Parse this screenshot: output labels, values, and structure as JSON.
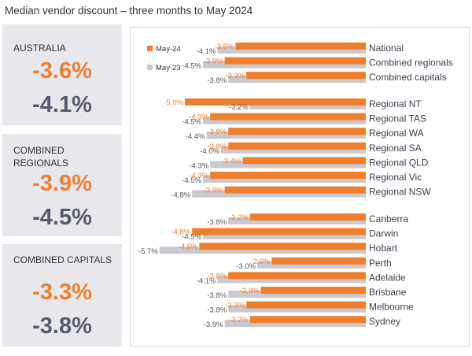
{
  "title": "Median vendor discount – three months to May 2024",
  "summary": [
    {
      "label": "AUSTRALIA",
      "current": "-3.6%",
      "previous": "-4.1%"
    },
    {
      "label": "COMBINED REGIONALS",
      "current": "-3.9%",
      "previous": "-4.5%"
    },
    {
      "label": "COMBINED CAPITALS",
      "current": "-3.3%",
      "previous": "-3.8%"
    }
  ],
  "colors": {
    "may24": "#f07f2d",
    "may23": "#c9c9cf",
    "panel": "#e7e7ec"
  },
  "chart_data": {
    "type": "bar",
    "orientation": "horizontal",
    "legend_position": "top-left",
    "groups": [
      [
        "National",
        "Combined regionals",
        "Combined capitals"
      ],
      [
        "Regional NT",
        "Regional TAS",
        "Regional WA",
        "Regional SA",
        "Regional QLD",
        "Regional Vic",
        "Regional NSW"
      ],
      [
        "Canberra",
        "Darwin",
        "Hobart",
        "Perth",
        "Adelaide",
        "Brisbane",
        "Melbourne",
        "Sydney"
      ]
    ],
    "categories": [
      "National",
      "Combined regionals",
      "Combined capitals",
      "Regional NT",
      "Regional TAS",
      "Regional WA",
      "Regional SA",
      "Regional QLD",
      "Regional Vic",
      "Regional NSW",
      "Canberra",
      "Darwin",
      "Hobart",
      "Perth",
      "Adelaide",
      "Brisbane",
      "Melbourne",
      "Sydney"
    ],
    "series": [
      {
        "name": "May-24",
        "values": [
          -3.6,
          -3.9,
          -3.3,
          -5.0,
          -4.3,
          -3.8,
          -3.8,
          -3.4,
          -4.3,
          -3.9,
          -3.2,
          -4.8,
          -4.6,
          -2.6,
          -3.8,
          -2.9,
          -3.3,
          -3.2
        ]
      },
      {
        "name": "May-23",
        "values": [
          -4.1,
          -4.5,
          -3.8,
          -3.2,
          -4.5,
          -4.4,
          -4.0,
          -4.3,
          -4.5,
          -4.8,
          -3.8,
          -4.5,
          -5.7,
          -3.0,
          -4.1,
          -3.8,
          -3.8,
          -3.9
        ]
      }
    ]
  }
}
